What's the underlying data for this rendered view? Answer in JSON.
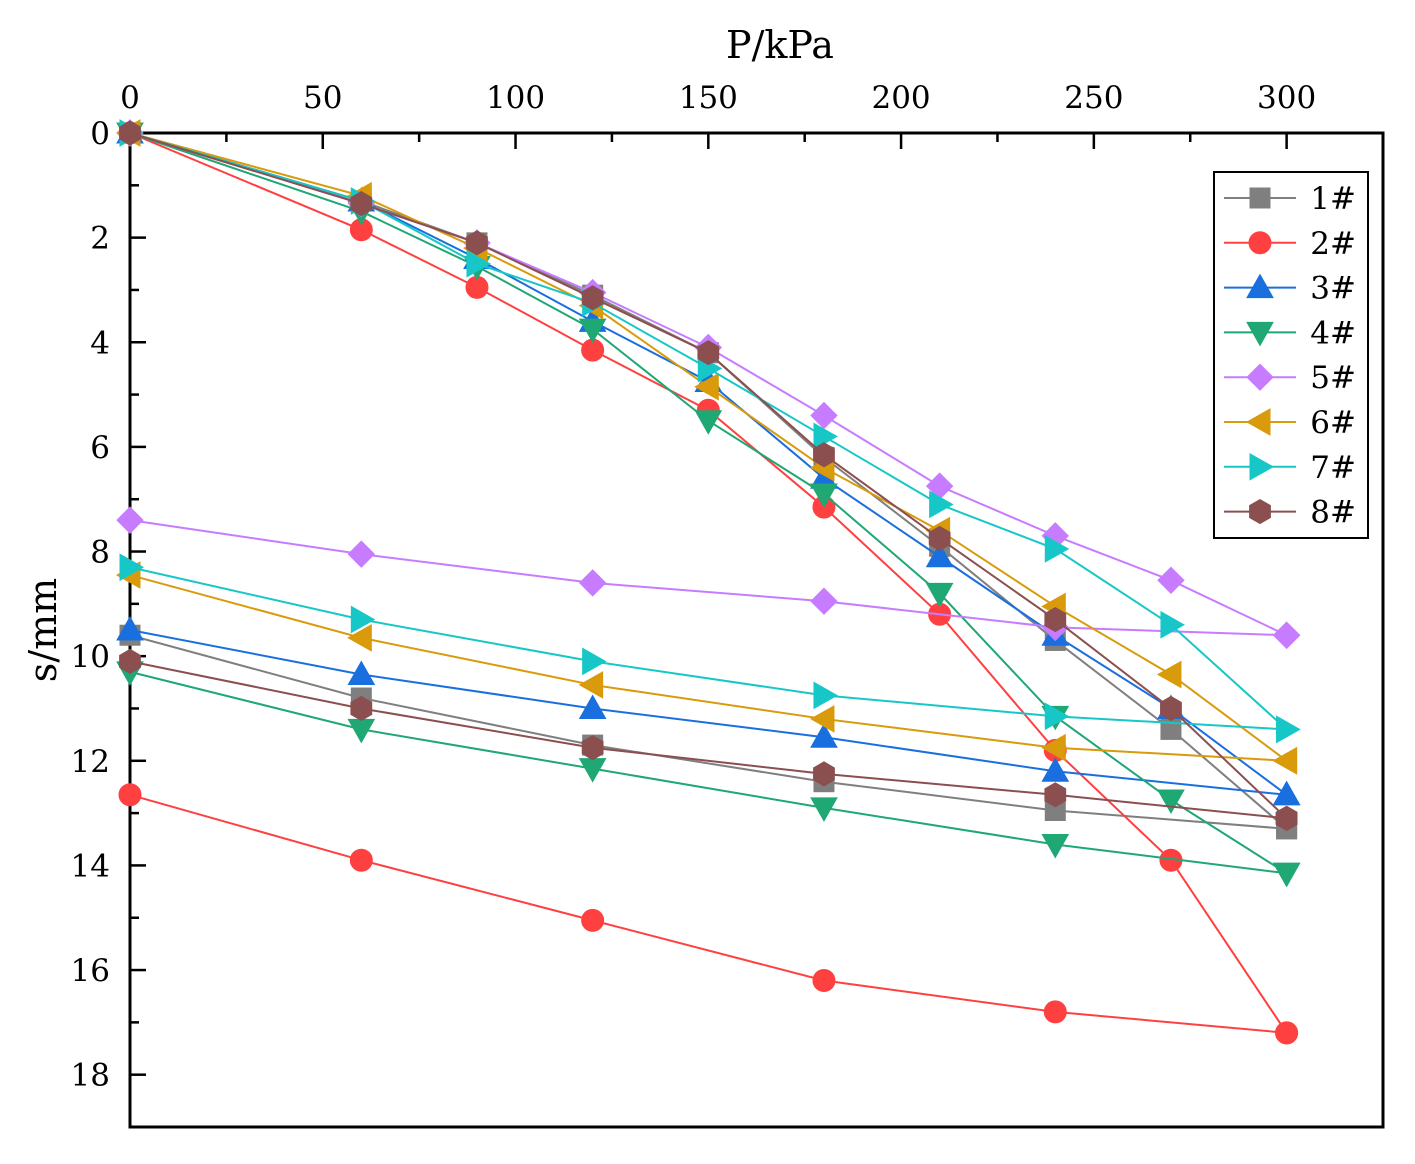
{
  "chart_data": {
    "type": "line",
    "xlabel": "P/kPa",
    "ylabel": "s/mm",
    "xlim": [
      0,
      325
    ],
    "ylim": [
      0,
      19
    ],
    "y_inverted": true,
    "x_axis_position": "top",
    "x_ticks": [
      0,
      50,
      100,
      150,
      200,
      250,
      300
    ],
    "y_ticks": [
      0,
      2,
      4,
      6,
      8,
      10,
      12,
      14,
      16,
      18
    ],
    "legend_position": "top-right",
    "grid": false,
    "series": [
      {
        "name": "1#",
        "color": "#7f7f7f",
        "marker": "square",
        "loading": [
          [
            0,
            0
          ],
          [
            60,
            1.3
          ],
          [
            90,
            2.1
          ],
          [
            120,
            3.1
          ],
          [
            150,
            4.2
          ],
          [
            180,
            6.2
          ],
          [
            210,
            7.9
          ],
          [
            240,
            9.7
          ],
          [
            270,
            11.4
          ],
          [
            300,
            13.3
          ]
        ],
        "unloading": [
          [
            300,
            13.3
          ],
          [
            240,
            12.95
          ],
          [
            180,
            12.4
          ],
          [
            120,
            11.7
          ],
          [
            60,
            10.8
          ],
          [
            0,
            9.6
          ]
        ]
      },
      {
        "name": "2#",
        "color": "#ff4040",
        "marker": "circle",
        "loading": [
          [
            0,
            0
          ],
          [
            60,
            1.85
          ],
          [
            90,
            2.95
          ],
          [
            120,
            4.15
          ],
          [
            150,
            5.3
          ],
          [
            180,
            7.15
          ],
          [
            210,
            9.2
          ],
          [
            240,
            11.8
          ],
          [
            270,
            13.9
          ],
          [
            300,
            17.2
          ]
        ],
        "unloading": [
          [
            300,
            17.2
          ],
          [
            240,
            16.8
          ],
          [
            180,
            16.2
          ],
          [
            120,
            15.05
          ],
          [
            60,
            13.9
          ],
          [
            0,
            12.65
          ]
        ]
      },
      {
        "name": "3#",
        "color": "#1a6fdf",
        "marker": "triangle-up",
        "loading": [
          [
            0,
            0
          ],
          [
            60,
            1.3
          ],
          [
            90,
            2.4
          ],
          [
            120,
            3.6
          ],
          [
            150,
            4.75
          ],
          [
            180,
            6.6
          ],
          [
            210,
            8.1
          ],
          [
            240,
            9.6
          ],
          [
            270,
            11.0
          ],
          [
            300,
            12.65
          ]
        ],
        "unloading": [
          [
            300,
            12.65
          ],
          [
            240,
            12.2
          ],
          [
            180,
            11.55
          ],
          [
            120,
            11.0
          ],
          [
            60,
            10.35
          ],
          [
            0,
            9.5
          ]
        ]
      },
      {
        "name": "4#",
        "color": "#1fa774",
        "marker": "triangle-down",
        "loading": [
          [
            0,
            0
          ],
          [
            60,
            1.5
          ],
          [
            90,
            2.55
          ],
          [
            120,
            3.75
          ],
          [
            150,
            5.5
          ],
          [
            180,
            6.9
          ],
          [
            210,
            8.8
          ],
          [
            240,
            11.15
          ],
          [
            270,
            12.75
          ],
          [
            300,
            14.15
          ]
        ],
        "unloading": [
          [
            300,
            14.15
          ],
          [
            240,
            13.6
          ],
          [
            180,
            12.9
          ],
          [
            120,
            12.15
          ],
          [
            60,
            11.4
          ],
          [
            0,
            10.3
          ]
        ]
      },
      {
        "name": "5#",
        "color": "#c77cff",
        "marker": "diamond",
        "loading": [
          [
            0,
            0
          ],
          [
            60,
            1.35
          ],
          [
            90,
            2.1
          ],
          [
            120,
            3.05
          ],
          [
            150,
            4.1
          ],
          [
            180,
            5.4
          ],
          [
            210,
            6.75
          ],
          [
            240,
            7.7
          ],
          [
            270,
            8.55
          ],
          [
            300,
            9.6
          ]
        ],
        "unloading": [
          [
            300,
            9.6
          ],
          [
            240,
            9.45
          ],
          [
            180,
            8.95
          ],
          [
            120,
            8.6
          ],
          [
            60,
            8.05
          ],
          [
            0,
            7.4
          ]
        ]
      },
      {
        "name": "6#",
        "color": "#d99a0b",
        "marker": "triangle-left",
        "loading": [
          [
            0,
            0
          ],
          [
            60,
            1.2
          ],
          [
            90,
            2.2
          ],
          [
            120,
            3.3
          ],
          [
            150,
            4.85
          ],
          [
            180,
            6.4
          ],
          [
            210,
            7.6
          ],
          [
            240,
            9.05
          ],
          [
            270,
            10.35
          ],
          [
            300,
            12.0
          ]
        ],
        "unloading": [
          [
            300,
            12.0
          ],
          [
            240,
            11.75
          ],
          [
            180,
            11.2
          ],
          [
            120,
            10.55
          ],
          [
            60,
            9.65
          ],
          [
            0,
            8.45
          ]
        ]
      },
      {
        "name": "7#",
        "color": "#17c7c7",
        "marker": "triangle-right",
        "loading": [
          [
            0,
            0
          ],
          [
            60,
            1.3
          ],
          [
            90,
            2.5
          ],
          [
            120,
            3.25
          ],
          [
            150,
            4.5
          ],
          [
            180,
            5.8
          ],
          [
            210,
            7.1
          ],
          [
            240,
            7.95
          ],
          [
            270,
            9.4
          ],
          [
            300,
            11.4
          ]
        ],
        "unloading": [
          [
            300,
            11.4
          ],
          [
            240,
            11.15
          ],
          [
            180,
            10.75
          ],
          [
            120,
            10.1
          ],
          [
            60,
            9.3
          ],
          [
            0,
            8.3
          ]
        ]
      },
      {
        "name": "8#",
        "color": "#8b4f4f",
        "marker": "hexagon",
        "loading": [
          [
            0,
            0
          ],
          [
            60,
            1.35
          ],
          [
            90,
            2.1
          ],
          [
            120,
            3.15
          ],
          [
            150,
            4.2
          ],
          [
            180,
            6.15
          ],
          [
            210,
            7.75
          ],
          [
            240,
            9.3
          ],
          [
            270,
            11.0
          ],
          [
            300,
            13.1
          ]
        ],
        "unloading": [
          [
            300,
            13.1
          ],
          [
            240,
            12.65
          ],
          [
            180,
            12.25
          ],
          [
            120,
            11.75
          ],
          [
            60,
            11.0
          ],
          [
            0,
            10.1
          ]
        ]
      }
    ]
  }
}
